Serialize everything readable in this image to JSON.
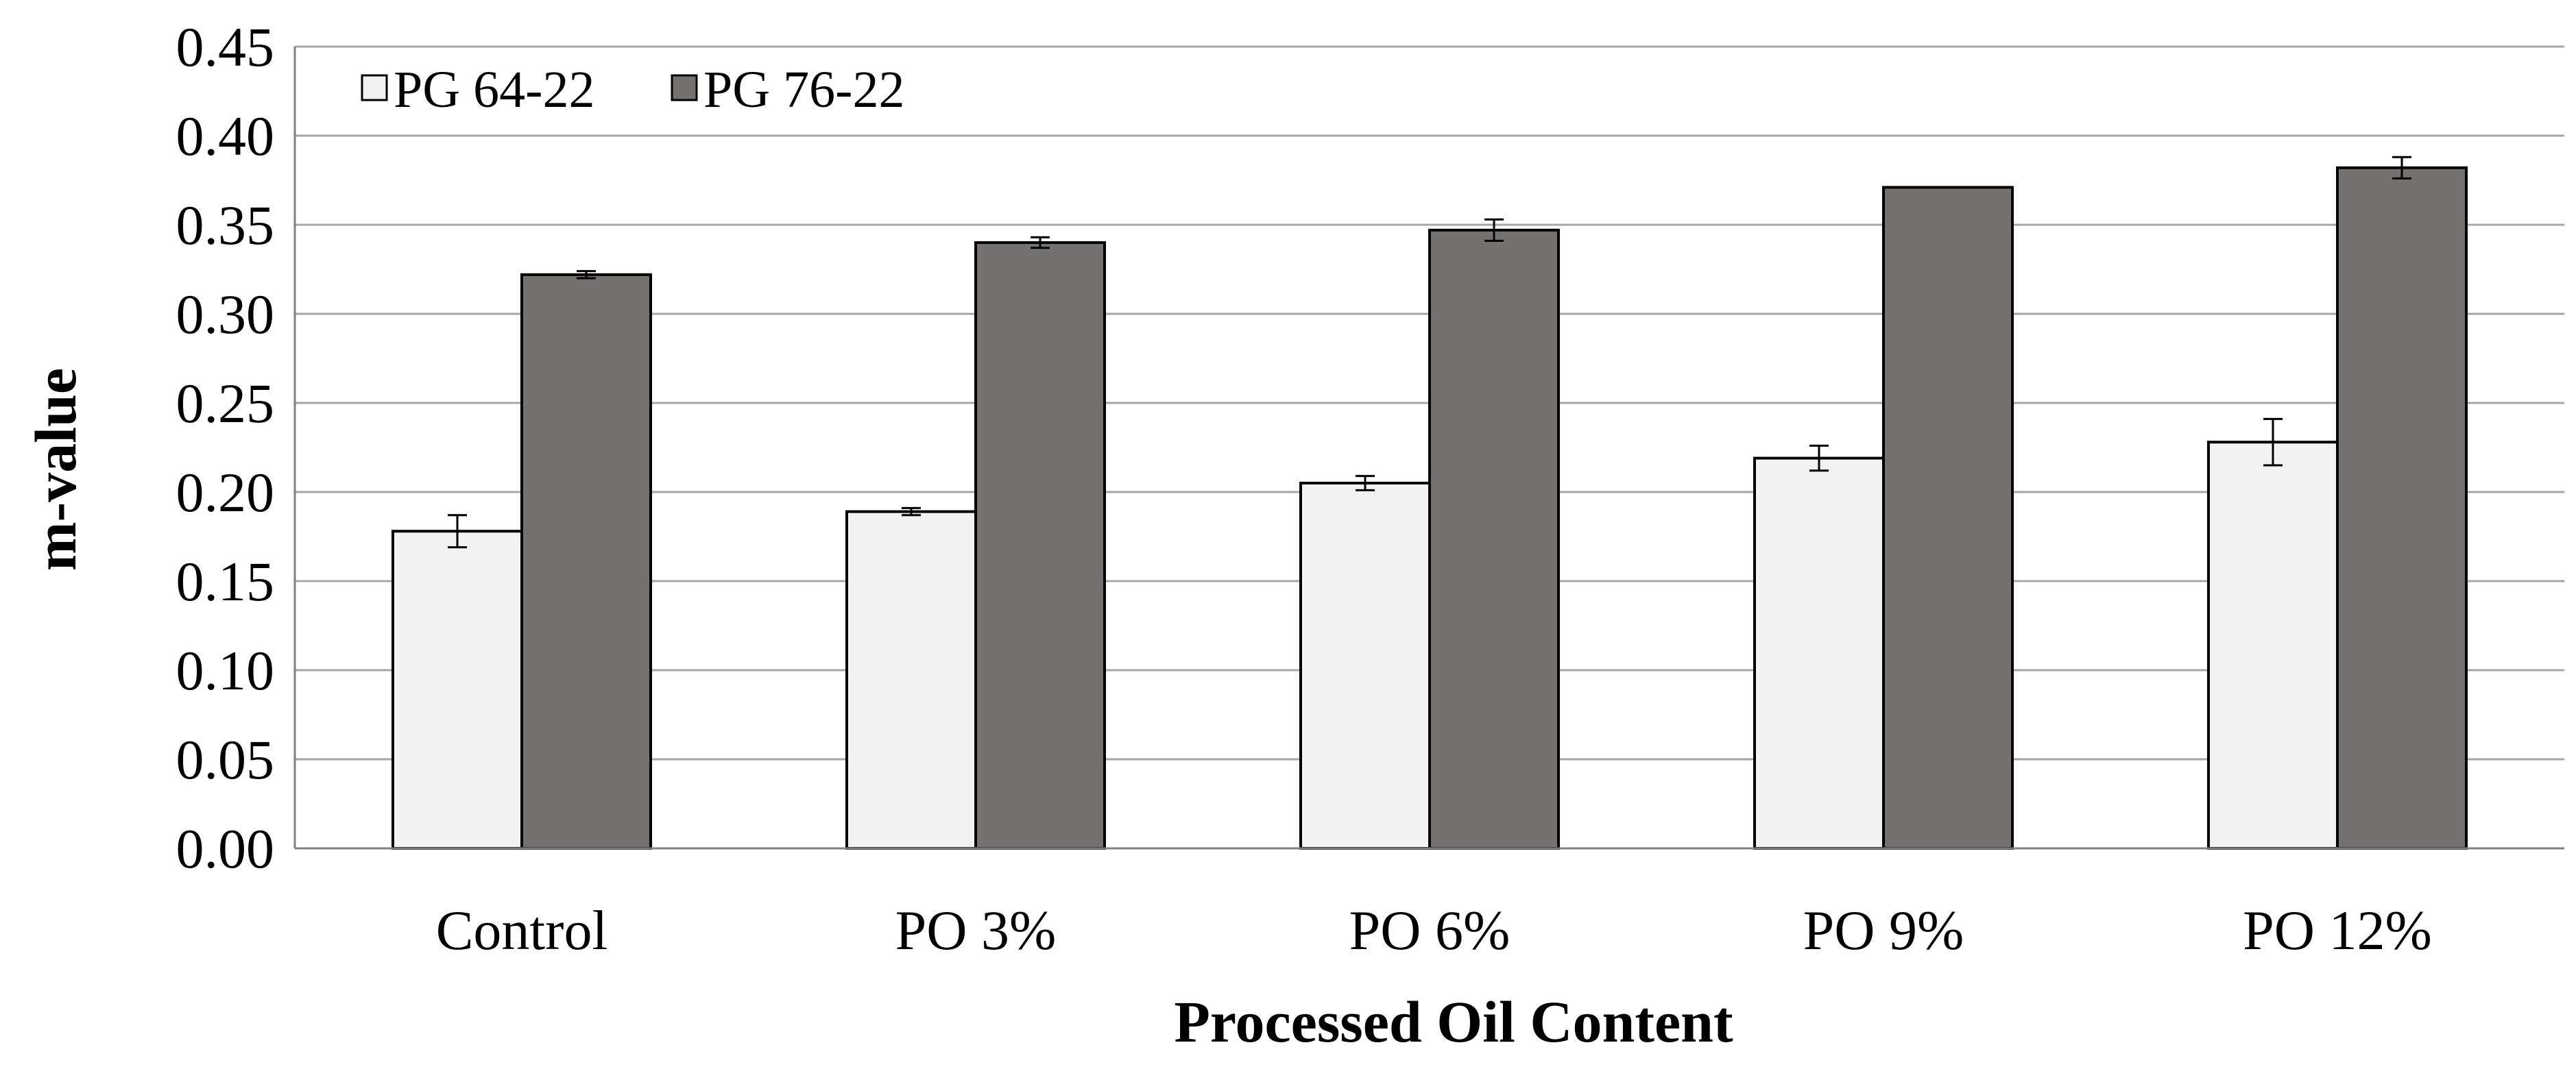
{
  "chart_data": {
    "type": "bar",
    "title": "",
    "xlabel": "Processed Oil Content",
    "ylabel": "m-value",
    "ylim": [
      0,
      0.45
    ],
    "yticks": [
      "0.00",
      "0.05",
      "0.10",
      "0.15",
      "0.20",
      "0.25",
      "0.30",
      "0.35",
      "0.40",
      "0.45"
    ],
    "categories": [
      "Control",
      "PO 3%",
      "PO 6%",
      "PO 9%",
      "PO 12%"
    ],
    "grid": true,
    "legend_position": "top-left",
    "series": [
      {
        "name": "PG 64-22",
        "color": "#f2f2f2",
        "values": [
          0.178,
          0.189,
          0.205,
          0.219,
          0.228
        ],
        "errors": [
          0.009,
          0.002,
          0.004,
          0.007,
          0.013
        ]
      },
      {
        "name": "PG 76-22",
        "color": "#767171",
        "values": [
          0.322,
          0.34,
          0.347,
          0.371,
          0.382
        ],
        "errors": [
          0.002,
          0.003,
          0.006,
          0.0,
          0.006
        ]
      }
    ]
  }
}
